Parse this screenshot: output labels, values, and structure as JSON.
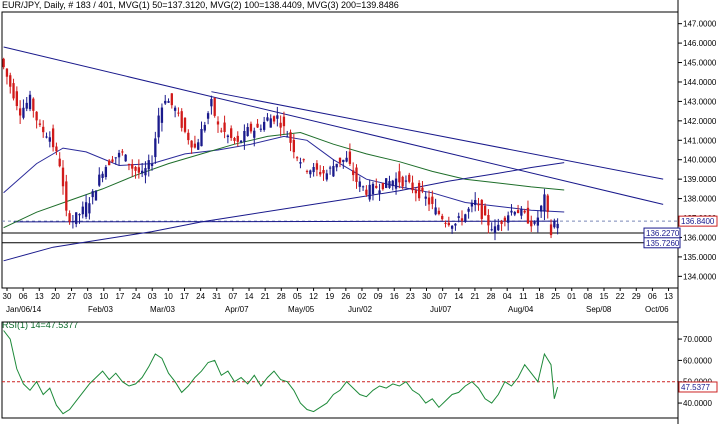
{
  "header": {
    "symbol": "EUR/JPY",
    "timeframe": "Daily",
    "bars": "# 183 / 401",
    "mvg1": "MVG(1) 50=137.3120",
    "mvg2": "MVG(2) 100=138.4409",
    "mvg3": "MVG(3) 200=139.8486"
  },
  "rsi_header": "RSI(1) 14=47.5377",
  "colors": {
    "up": "#1a1a8c",
    "down": "#d11a1a",
    "ma50": "#2a2a9a",
    "ma100": "#1e6e2a",
    "ma200": "#1a1a8c",
    "trend": "#1a1a8c",
    "rsi": "#1e8a3a",
    "rsi_level": "#cc2222",
    "grid": "#7a86b8"
  },
  "chart_data": [
    {
      "type": "candlestick",
      "title": "EUR/JPY, Daily",
      "ylim": [
        133.4,
        147.6
      ],
      "y_ticks": [
        "134.0000",
        "135.0000",
        "136.0000",
        "137.0000",
        "138.0000",
        "139.0000",
        "140.0000",
        "141.0000",
        "142.0000",
        "143.0000",
        "144.0000",
        "145.0000",
        "146.0000",
        "147.0000"
      ],
      "x_tick_labels": [
        "30",
        "06",
        "13",
        "20",
        "27",
        "03",
        "10",
        "17",
        "24",
        "03",
        "10",
        "17",
        "24",
        "31",
        "07",
        "14",
        "21",
        "28",
        "05",
        "12",
        "19",
        "26",
        "02",
        "09",
        "16",
        "23",
        "30",
        "07",
        "14",
        "21",
        "28",
        "04",
        "11",
        "18",
        "25",
        "01",
        "08",
        "15",
        "22",
        "29",
        "06",
        "13"
      ],
      "month_labels": [
        "Jan/06/14",
        "Feb/03",
        "Mar/03",
        "Apr/07",
        "May/05",
        "Jun/02",
        "Jul/07",
        "Aug/04",
        "Sep/08",
        "Oct/06"
      ],
      "price_labels": [
        "136.8400",
        "136.2270",
        "135.7260"
      ],
      "horizontal_levels": [
        136.84,
        136.227,
        135.726
      ],
      "trendlines": [
        {
          "from_bar": 0,
          "from_price": 145.8,
          "to_bar": 200,
          "to_price": 137.7
        },
        {
          "from_bar": 63,
          "from_price": 143.5,
          "to_bar": 200,
          "to_price": 139.0
        },
        {
          "from_bar": 3,
          "from_price": 136.8,
          "to_bar": 168,
          "to_price": 136.84
        }
      ],
      "moving_averages": [
        {
          "name": "MVG(1) 50",
          "points": [
            [
              0,
              138.3
            ],
            [
              10,
              139.8
            ],
            [
              18,
              140.6
            ],
            [
              25,
              140.4
            ],
            [
              35,
              139.7
            ],
            [
              45,
              139.8
            ],
            [
              55,
              140.3
            ],
            [
              65,
              140.5
            ],
            [
              75,
              140.8
            ],
            [
              85,
              141.2
            ],
            [
              92,
              141.0
            ],
            [
              100,
              140.0
            ],
            [
              110,
              139.0
            ],
            [
              120,
              138.6
            ],
            [
              130,
              138.3
            ],
            [
              140,
              137.8
            ],
            [
              150,
              137.6
            ],
            [
              160,
              137.4
            ],
            [
              170,
              137.31
            ]
          ]
        },
        {
          "name": "MVG(2) 100",
          "points": [
            [
              0,
              136.5
            ],
            [
              10,
              137.3
            ],
            [
              20,
              137.9
            ],
            [
              30,
              138.5
            ],
            [
              40,
              139.2
            ],
            [
              50,
              139.8
            ],
            [
              60,
              140.3
            ],
            [
              70,
              140.8
            ],
            [
              80,
              141.2
            ],
            [
              90,
              141.4
            ],
            [
              100,
              140.8
            ],
            [
              110,
              140.3
            ],
            [
              120,
              139.9
            ],
            [
              130,
              139.4
            ],
            [
              140,
              139.0
            ],
            [
              150,
              138.8
            ],
            [
              160,
              138.6
            ],
            [
              170,
              138.44
            ]
          ]
        },
        {
          "name": "MVG(3) 200",
          "points": [
            [
              0,
              134.8
            ],
            [
              15,
              135.5
            ],
            [
              30,
              135.9
            ],
            [
              45,
              136.3
            ],
            [
              60,
              136.8
            ],
            [
              75,
              137.2
            ],
            [
              90,
              137.6
            ],
            [
              105,
              138.0
            ],
            [
              120,
              138.4
            ],
            [
              135,
              138.9
            ],
            [
              150,
              139.3
            ],
            [
              160,
              139.6
            ],
            [
              170,
              139.85
            ]
          ]
        }
      ],
      "close_path": [
        [
          0,
          145.2
        ],
        [
          3,
          143.8
        ],
        [
          6,
          142.5
        ],
        [
          9,
          143.1
        ],
        [
          12,
          141.6
        ],
        [
          15,
          141.2
        ],
        [
          18,
          139.8
        ],
        [
          20,
          137.2
        ],
        [
          22,
          136.9
        ],
        [
          25,
          137.4
        ],
        [
          28,
          138.2
        ],
        [
          31,
          139.5
        ],
        [
          34,
          140.1
        ],
        [
          37,
          140.3
        ],
        [
          40,
          139.6
        ],
        [
          43,
          139.2
        ],
        [
          46,
          140.0
        ],
        [
          48,
          142.3
        ],
        [
          50,
          143.2
        ],
        [
          53,
          142.6
        ],
        [
          56,
          141.4
        ],
        [
          59,
          140.6
        ],
        [
          62,
          141.9
        ],
        [
          64,
          142.9
        ],
        [
          66,
          141.7
        ],
        [
          69,
          141.2
        ],
        [
          72,
          140.8
        ],
        [
          75,
          141.5
        ],
        [
          78,
          141.6
        ],
        [
          81,
          142.1
        ],
        [
          84,
          142.2
        ],
        [
          87,
          141.3
        ],
        [
          90,
          140.2
        ],
        [
          93,
          139.6
        ],
        [
          96,
          139.4
        ],
        [
          99,
          139.3
        ],
        [
          102,
          139.9
        ],
        [
          105,
          140.0
        ],
        [
          108,
          138.9
        ],
        [
          111,
          138.4
        ],
        [
          114,
          138.6
        ],
        [
          117,
          138.8
        ],
        [
          120,
          139.0
        ],
        [
          123,
          138.8
        ],
        [
          126,
          138.4
        ],
        [
          129,
          138.0
        ],
        [
          132,
          137.4
        ],
        [
          135,
          136.9
        ],
        [
          138,
          136.7
        ],
        [
          141,
          137.2
        ],
        [
          144,
          137.8
        ],
        [
          147,
          136.9
        ],
        [
          150,
          136.4
        ],
        [
          153,
          137.1
        ],
        [
          156,
          137.5
        ],
        [
          159,
          137.1
        ],
        [
          162,
          136.6
        ],
        [
          165,
          138.0
        ],
        [
          167,
          136.2
        ],
        [
          168,
          136.8
        ]
      ]
    },
    {
      "type": "line",
      "title": "RSI(1) 14=47.5377",
      "ylim": [
        33,
        78
      ],
      "y_ticks": [
        "40.0000",
        "50.0000",
        "60.0000",
        "70.0000"
      ],
      "level": 50,
      "current_label": "47.5377",
      "current_value": 47.5377,
      "points": [
        [
          0,
          74
        ],
        [
          2,
          70
        ],
        [
          4,
          56
        ],
        [
          6,
          49
        ],
        [
          8,
          46
        ],
        [
          10,
          50
        ],
        [
          12,
          44
        ],
        [
          14,
          47
        ],
        [
          16,
          39
        ],
        [
          18,
          35
        ],
        [
          20,
          37
        ],
        [
          22,
          41
        ],
        [
          24,
          45
        ],
        [
          26,
          49
        ],
        [
          28,
          52
        ],
        [
          30,
          55
        ],
        [
          32,
          51
        ],
        [
          34,
          54
        ],
        [
          36,
          50
        ],
        [
          38,
          48
        ],
        [
          40,
          49
        ],
        [
          42,
          52
        ],
        [
          44,
          57
        ],
        [
          46,
          63
        ],
        [
          48,
          61
        ],
        [
          50,
          54
        ],
        [
          52,
          50
        ],
        [
          54,
          45
        ],
        [
          56,
          48
        ],
        [
          58,
          52
        ],
        [
          60,
          55
        ],
        [
          62,
          59
        ],
        [
          64,
          60
        ],
        [
          66,
          53
        ],
        [
          68,
          55
        ],
        [
          70,
          50
        ],
        [
          72,
          52
        ],
        [
          74,
          49
        ],
        [
          76,
          53
        ],
        [
          78,
          48
        ],
        [
          80,
          52
        ],
        [
          82,
          55
        ],
        [
          84,
          51
        ],
        [
          86,
          50
        ],
        [
          88,
          46
        ],
        [
          90,
          40
        ],
        [
          92,
          37
        ],
        [
          94,
          36
        ],
        [
          96,
          38
        ],
        [
          98,
          40
        ],
        [
          100,
          44
        ],
        [
          102,
          46
        ],
        [
          104,
          50
        ],
        [
          106,
          47
        ],
        [
          108,
          44
        ],
        [
          110,
          43
        ],
        [
          112,
          46
        ],
        [
          114,
          48
        ],
        [
          116,
          47
        ],
        [
          118,
          49
        ],
        [
          120,
          48
        ],
        [
          122,
          50
        ],
        [
          124,
          46
        ],
        [
          126,
          44
        ],
        [
          128,
          40
        ],
        [
          130,
          42
        ],
        [
          132,
          38
        ],
        [
          134,
          41
        ],
        [
          136,
          44
        ],
        [
          138,
          45
        ],
        [
          140,
          48
        ],
        [
          142,
          50
        ],
        [
          144,
          47
        ],
        [
          146,
          42
        ],
        [
          148,
          40
        ],
        [
          150,
          44
        ],
        [
          152,
          50
        ],
        [
          154,
          48
        ],
        [
          156,
          52
        ],
        [
          158,
          58
        ],
        [
          160,
          54
        ],
        [
          162,
          50
        ],
        [
          164,
          63
        ],
        [
          166,
          58
        ],
        [
          167,
          42
        ],
        [
          168,
          47.5
        ]
      ]
    }
  ]
}
